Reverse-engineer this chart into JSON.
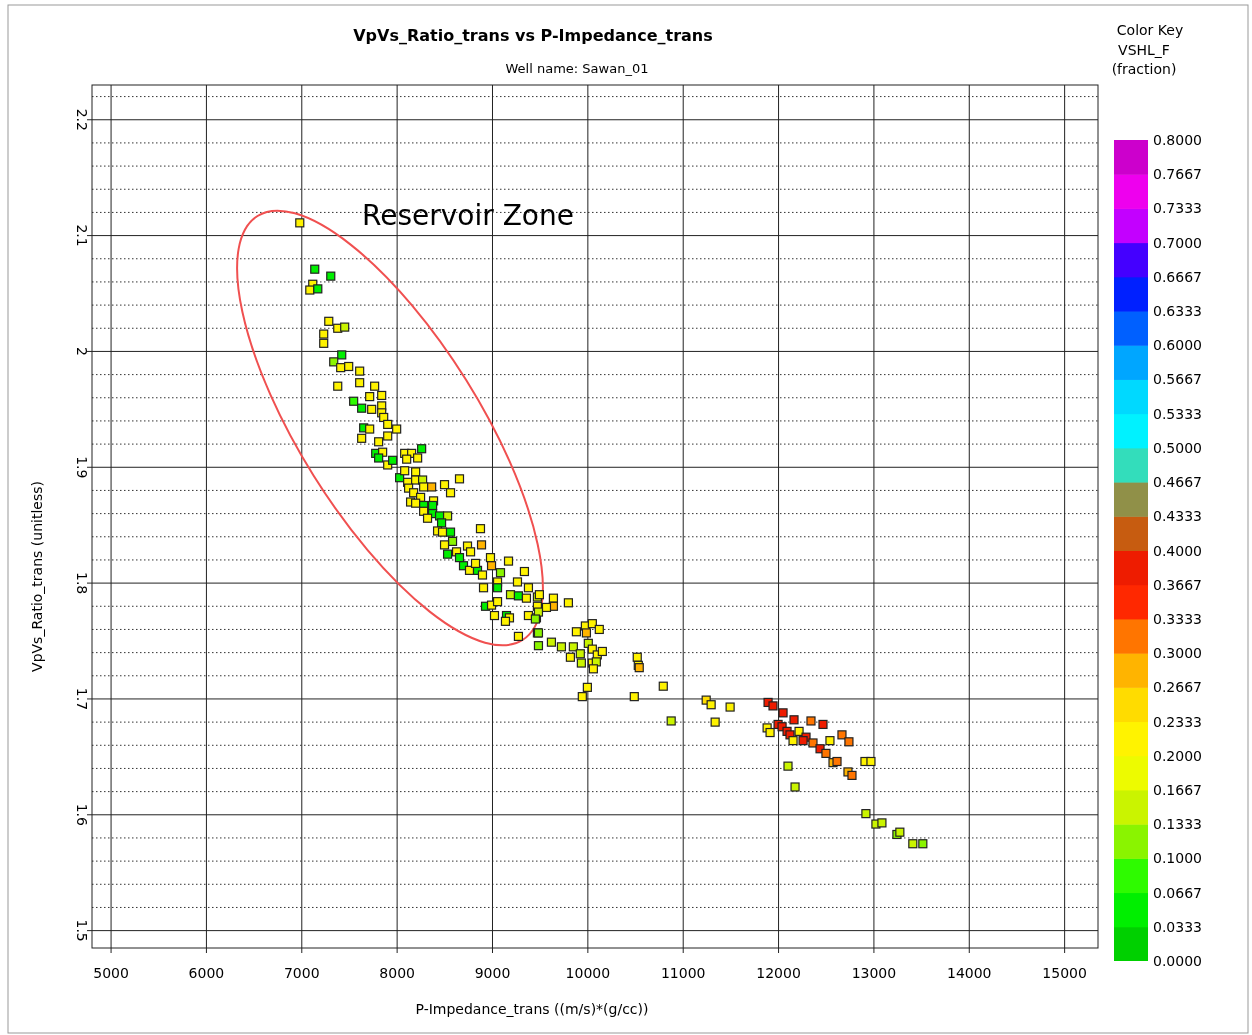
{
  "chart_data": {
    "type": "scatter",
    "title": "VpVs_Ratio_trans vs P-Impedance_trans",
    "subtitle": "Well name: Sawan_01",
    "xlabel": "P-Impedance_trans ((m/s)*(g/cc))",
    "ylabel": "VpVs_Ratio_trans (unitless)",
    "legend_title": "Color Key",
    "clabel": "VSHL_F (fraction)",
    "marker": "square",
    "grid": true,
    "annotations": [
      "Reservoir Zone"
    ],
    "xlim": [
      4800,
      15350
    ],
    "xticks": [
      5000,
      6000,
      7000,
      8000,
      9000,
      10000,
      11000,
      12000,
      13000,
      14000,
      15000
    ],
    "ylim": [
      1.485,
      2.23
    ],
    "yticks": [
      1.5,
      1.6,
      1.7,
      1.8,
      1.9,
      2,
      2.1,
      2.2
    ],
    "clim": [
      0,
      0.8
    ],
    "cticks": [
      {
        "value": 0,
        "label": "0.0000"
      },
      {
        "value": 0.0333,
        "label": "0.0333"
      },
      {
        "value": 0.0667,
        "label": "0.0667"
      },
      {
        "value": 0.1,
        "label": "0.1000"
      },
      {
        "value": 0.1333,
        "label": "0.1333"
      },
      {
        "value": 0.1667,
        "label": "0.1667"
      },
      {
        "value": 0.2,
        "label": "0.2000"
      },
      {
        "value": 0.2333,
        "label": "0.2333"
      },
      {
        "value": 0.2667,
        "label": "0.2667"
      },
      {
        "value": 0.3,
        "label": "0.3000"
      },
      {
        "value": 0.3333,
        "label": "0.3333"
      },
      {
        "value": 0.3667,
        "label": "0.3667"
      },
      {
        "value": 0.4,
        "label": "0.4000"
      },
      {
        "value": 0.4333,
        "label": "0.4333"
      },
      {
        "value": 0.4667,
        "label": "0.4667"
      },
      {
        "value": 0.5,
        "label": "0.5000"
      },
      {
        "value": 0.5333,
        "label": "0.5333"
      },
      {
        "value": 0.5667,
        "label": "0.5667"
      },
      {
        "value": 0.6,
        "label": "0.6000"
      },
      {
        "value": 0.6333,
        "label": "0.6333"
      },
      {
        "value": 0.6667,
        "label": "0.6667"
      },
      {
        "value": 0.7,
        "label": "0.7000"
      },
      {
        "value": 0.7333,
        "label": "0.7333"
      },
      {
        "value": 0.7667,
        "label": "0.7667"
      },
      {
        "value": 0.8,
        "label": "0.8000"
      }
    ],
    "x": [
      6979,
      7136,
      7304,
      7115,
      7084,
      7168,
      7283,
      7377,
      7450,
      7230,
      7230,
      7419,
      7335,
      7408,
      7492,
      7377,
      7607,
      7607,
      7764,
      7712,
      7838,
      7544,
      7628,
      7733,
      7838,
      7838,
      7859,
      7649,
      7712,
      7901,
      7995,
      7901,
      7628,
      7806,
      7775,
      7848,
      7806,
      7901,
      7953,
      8079,
      8152,
      8215,
      8257,
      8100,
      8026,
      8079,
      8194,
      8110,
      8194,
      8120,
      8267,
      8278,
      8362,
      8497,
      8654,
      8560,
      8173,
      8246,
      8141,
      8194,
      8382,
      8278,
      8372,
      8278,
      8372,
      8319,
      8445,
      8529,
      8466,
      8424,
      8476,
      8560,
      8581,
      8497,
      8874,
      8885,
      8738,
      8770,
      8623,
      8529,
      8654,
      8696,
      8759,
      8843,
      8822,
      8979,
      8990,
      9168,
      9084,
      8895,
      9053,
      9053,
      8906,
      9189,
      9262,
      9335,
      9377,
      9272,
      9356,
      9471,
      9492,
      9639,
      9639,
      9566,
      9471,
      8927,
      8990,
      9053,
      9021,
      9147,
      9178,
      9136,
      9377,
      9461,
      9471,
      9272,
      9796,
      9482,
      9450,
      9482,
      9482,
      9618,
      9723,
      9848,
      9880,
      9974,
      10047,
      9985,
      10120,
      10005,
      9921,
      10047,
      10099,
      10152,
      9817,
      9932,
      10047,
      10089,
      10058,
      10518,
      10529,
      10539,
      9995,
      9942,
      10487,
      10791,
      10874,
      11241,
      11293,
      11492,
      11335,
      11890,
      11942,
      12047,
      12162,
      12340,
      12466,
      11995,
      12037,
      11880,
      11911,
      12089,
      12215,
      12120,
      12288,
      12152,
      12257,
      12361,
      12539,
      12665,
      12738,
      12435,
      12497,
      12571,
      12613,
      12728,
      12770,
      12906,
      12969,
      12099,
      12173,
      12916,
      13021,
      13084,
      13241,
      13272,
      13408,
      13513
    ],
    "values": [
      2.111,
      2.071,
      2.065,
      2.058,
      2.053,
      2.054,
      2.026,
      2.02,
      2.021,
      2.015,
      2.007,
      1.997,
      1.991,
      1.986,
      1.987,
      1.97,
      1.983,
      1.973,
      1.97,
      1.961,
      1.962,
      1.957,
      1.951,
      1.95,
      1.953,
      1.947,
      1.943,
      1.934,
      1.933,
      1.937,
      1.933,
      1.927,
      1.925,
      1.922,
      1.912,
      1.913,
      1.908,
      1.902,
      1.906,
      1.912,
      1.912,
      1.908,
      1.916,
      1.907,
      1.891,
      1.897,
      1.896,
      1.887,
      1.889,
      1.882,
      1.889,
      1.883,
      1.883,
      1.885,
      1.89,
      1.878,
      1.878,
      1.874,
      1.87,
      1.869,
      1.871,
      1.867,
      1.867,
      1.862,
      1.86,
      1.856,
      1.858,
      1.858,
      1.852,
      1.845,
      1.844,
      1.844,
      1.836,
      1.833,
      1.847,
      1.833,
      1.832,
      1.827,
      1.827,
      1.825,
      1.822,
      1.815,
      1.811,
      1.811,
      1.817,
      1.822,
      1.815,
      1.819,
      1.809,
      1.807,
      1.801,
      1.796,
      1.796,
      1.79,
      1.801,
      1.81,
      1.796,
      1.789,
      1.787,
      1.788,
      1.79,
      1.787,
      1.78,
      1.779,
      1.78,
      1.78,
      1.781,
      1.784,
      1.772,
      1.772,
      1.77,
      1.767,
      1.772,
      1.77,
      1.757,
      1.754,
      1.783,
      1.775,
      1.769,
      1.757,
      1.746,
      1.749,
      1.745,
      1.745,
      1.758,
      1.763,
      1.765,
      1.757,
      1.76,
      1.748,
      1.739,
      1.743,
      1.738,
      1.741,
      1.736,
      1.731,
      1.731,
      1.732,
      1.726,
      1.736,
      1.729,
      1.727,
      1.71,
      1.702,
      1.702,
      1.711,
      1.681,
      1.699,
      1.695,
      1.693,
      1.68,
      1.697,
      1.694,
      1.688,
      1.682,
      1.681,
      1.678,
      1.678,
      1.676,
      1.675,
      1.671,
      1.672,
      1.672,
      1.669,
      1.667,
      1.664,
      1.664,
      1.662,
      1.664,
      1.669,
      1.663,
      1.657,
      1.653,
      1.645,
      1.646,
      1.637,
      1.634,
      1.646,
      1.646,
      1.642,
      1.624,
      1.601,
      1.592,
      1.593,
      1.583,
      1.585,
      1.575,
      1.575
    ],
    "cvalues": [
      0.21,
      0.05,
      0.05,
      0.21,
      0.21,
      0.05,
      0.21,
      0.21,
      0.15,
      0.21,
      0.21,
      0.05,
      0.12,
      0.21,
      0.21,
      0.21,
      0.21,
      0.21,
      0.21,
      0.21,
      0.22,
      0.09,
      0.05,
      0.21,
      0.21,
      0.21,
      0.21,
      0.05,
      0.21,
      0.21,
      0.21,
      0.21,
      0.21,
      0.21,
      0.05,
      0.21,
      0.05,
      0.21,
      0.05,
      0.21,
      0.21,
      0.21,
      0.05,
      0.21,
      0.05,
      0.21,
      0.21,
      0.21,
      0.21,
      0.21,
      0.15,
      0.21,
      0.27,
      0.21,
      0.21,
      0.21,
      0.21,
      0.21,
      0.21,
      0.21,
      0.21,
      0.05,
      0.05,
      0.21,
      0.05,
      0.21,
      0.05,
      0.15,
      0.05,
      0.21,
      0.21,
      0.05,
      0.12,
      0.21,
      0.21,
      0.27,
      0.21,
      0.21,
      0.21,
      0.05,
      0.05,
      0.05,
      0.21,
      0.05,
      0.21,
      0.21,
      0.27,
      0.21,
      0.12,
      0.21,
      0.21,
      0.05,
      0.21,
      0.15,
      0.21,
      0.21,
      0.21,
      0.05,
      0.21,
      0.15,
      0.21,
      0.21,
      0.27,
      0.21,
      0.21,
      0.05,
      0.21,
      0.21,
      0.21,
      0.05,
      0.21,
      0.21,
      0.21,
      0.15,
      0.05,
      0.21,
      0.21,
      0.15,
      0.12,
      0.12,
      0.12,
      0.15,
      0.15,
      0.15,
      0.21,
      0.21,
      0.21,
      0.27,
      0.21,
      0.15,
      0.15,
      0.21,
      0.21,
      0.21,
      0.21,
      0.15,
      0.21,
      0.15,
      0.21,
      0.21,
      0.21,
      0.27,
      0.21,
      0.21,
      0.21,
      0.21,
      0.15,
      0.25,
      0.21,
      0.21,
      0.21,
      0.37,
      0.37,
      0.37,
      0.37,
      0.31,
      0.37,
      0.37,
      0.37,
      0.21,
      0.21,
      0.37,
      0.21,
      0.37,
      0.37,
      0.21,
      0.37,
      0.33,
      0.21,
      0.33,
      0.31,
      0.37,
      0.33,
      0.27,
      0.31,
      0.27,
      0.31,
      0.21,
      0.21,
      0.15,
      0.15,
      0.15,
      0.15,
      0.15,
      0.12,
      0.15,
      0.15,
      0.12
    ]
  }
}
